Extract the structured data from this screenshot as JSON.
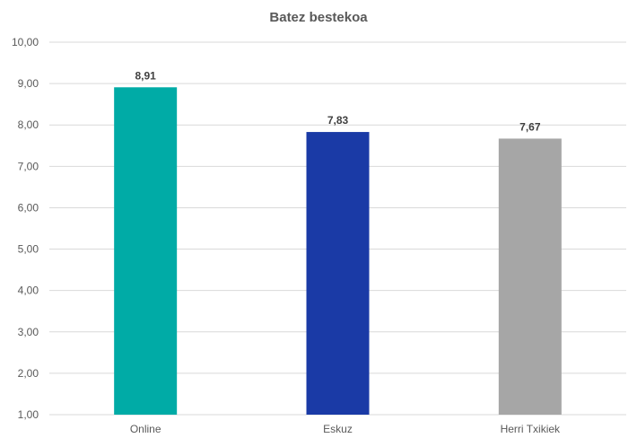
{
  "chart_data": {
    "type": "bar",
    "title": "Batez bestekoa",
    "xlabel": "",
    "ylabel": "",
    "categories": [
      "Online",
      "Eskuz",
      "Herri Txikiek"
    ],
    "values": [
      8.91,
      7.83,
      7.67
    ],
    "data_labels": [
      "8,91",
      "7,83",
      "7,67"
    ],
    "colors": [
      "#00aba6",
      "#1a3aa6",
      "#a6a6a6"
    ],
    "ylim": [
      1,
      10
    ],
    "ytick_values": [
      1,
      2,
      3,
      4,
      5,
      6,
      7,
      8,
      9,
      10
    ],
    "ytick_labels": [
      "1,00",
      "2,00",
      "3,00",
      "4,00",
      "5,00",
      "6,00",
      "7,00",
      "8,00",
      "9,00",
      "10,00"
    ],
    "grid": true,
    "legend": "none"
  }
}
